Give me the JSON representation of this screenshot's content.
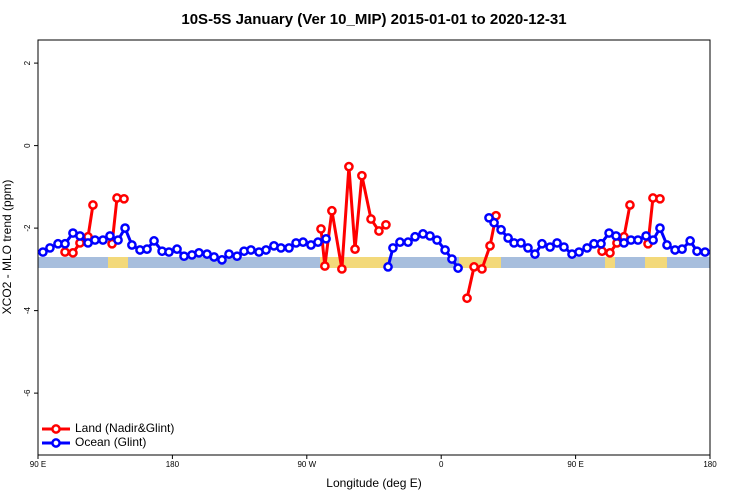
{
  "chart_data": {
    "type": "line",
    "title": "10S-5S January (Ver 10_MIP)   2015-01-01 to 2020-12-31",
    "x_label": "Longitude (deg E)",
    "y_label": "XCO2 - MLO trend (ppm)",
    "xlim": [
      90,
      540
    ],
    "ylim": [
      -7.5,
      2.56
    ],
    "xticks": [
      {
        "value": 90,
        "label": "90 E"
      },
      180,
      {
        "value": 270,
        "label": "90 W"
      },
      {
        "value": 360,
        "label": "0"
      },
      {
        "value": 450,
        "label": "90 E"
      },
      {
        "value": 540,
        "label": "180"
      }
    ],
    "yticks": [
      2,
      0,
      -2,
      -4,
      -6
    ],
    "legend": "bottom-left",
    "series": [
      {
        "name": "Land (Nadir&Glint)",
        "color": "#ff0000",
        "x": [
          108.1,
          113.4,
          118.1,
          123.5,
          126.8,
          null,
          139.6,
          142.9,
          147.6,
          null,
          279.5,
          282.1,
          286.8,
          293.5,
          298.2,
          302.3,
          306.9,
          313.0,
          318.3,
          323.0,
          null,
          377.3,
          382.0,
          387.3,
          392.7,
          396.7,
          null,
          467.7,
          473.0,
          477.7,
          482.4,
          486.4,
          null,
          498.5,
          501.8,
          506.5
        ],
        "values": [
          -2.58,
          -2.6,
          -2.36,
          -2.21,
          -1.44,
          null,
          -2.38,
          -1.27,
          -1.29,
          null,
          -2.02,
          -2.92,
          -1.58,
          -2.99,
          -0.51,
          -2.51,
          -0.73,
          -1.78,
          -2.07,
          -1.92,
          null,
          -3.7,
          -2.94,
          -2.99,
          -2.43,
          -1.7,
          null,
          -2.56,
          -2.6,
          -2.36,
          -2.21,
          -1.44,
          null,
          -2.38,
          -1.27,
          -1.29
        ]
      },
      {
        "name": "Ocean (Glint)",
        "color": "#0000ff",
        "x": [
          93.3,
          98.0,
          103.4,
          108.1,
          113.4,
          118.1,
          123.5,
          128.2,
          133.5,
          138.2,
          143.6,
          148.3,
          152.9,
          158.3,
          163.0,
          167.7,
          173.1,
          177.7,
          183.1,
          187.8,
          193.1,
          197.8,
          203.2,
          207.9,
          213.2,
          217.9,
          223.3,
          228.0,
          232.6,
          238.0,
          242.7,
          248.0,
          252.7,
          258.1,
          262.8,
          267.5,
          272.8,
          277.5,
          282.9,
          null,
          324.4,
          327.7,
          332.4,
          337.8,
          342.5,
          347.8,
          352.5,
          357.2,
          362.6,
          367.2,
          371.3,
          null,
          392.0,
          395.4,
          400.1,
          404.8,
          408.8,
          413.4,
          418.1,
          422.8,
          427.5,
          432.9,
          437.6,
          442.2,
          447.6,
          452.3,
          457.7,
          462.3,
          467.0,
          472.4,
          477.1,
          482.4,
          487.1,
          491.8,
          497.2,
          501.9,
          506.5,
          511.2,
          516.6,
          521.3,
          526.7,
          531.3,
          536.7
        ],
        "values": [
          -2.58,
          -2.48,
          -2.38,
          -2.38,
          -2.12,
          -2.19,
          -2.36,
          -2.29,
          -2.29,
          -2.19,
          -2.29,
          -2.0,
          -2.41,
          -2.53,
          -2.51,
          -2.31,
          -2.56,
          -2.58,
          -2.51,
          -2.68,
          -2.65,
          -2.6,
          -2.63,
          -2.7,
          -2.77,
          -2.63,
          -2.68,
          -2.56,
          -2.53,
          -2.58,
          -2.53,
          -2.43,
          -2.48,
          -2.48,
          -2.36,
          -2.34,
          -2.41,
          -2.34,
          -2.26,
          null,
          -2.94,
          -2.48,
          -2.34,
          -2.34,
          -2.21,
          -2.14,
          -2.19,
          -2.29,
          -2.53,
          -2.75,
          -2.97,
          null,
          -1.75,
          -1.87,
          -2.04,
          -2.24,
          -2.36,
          -2.36,
          -2.48,
          -2.63,
          -2.38,
          -2.46,
          -2.36,
          -2.46,
          -2.63,
          -2.58,
          -2.48,
          -2.38,
          -2.38,
          -2.12,
          -2.19,
          -2.36,
          -2.29,
          -2.29,
          -2.19,
          -2.29,
          -2.0,
          -2.41,
          -2.53,
          -2.51,
          -2.31,
          -2.56,
          -2.58
        ]
      }
    ]
  }
}
